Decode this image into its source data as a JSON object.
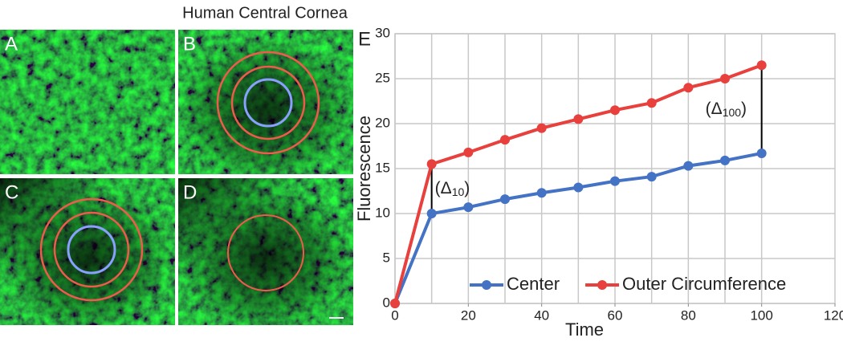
{
  "title": "Human Central Cornea",
  "panels": [
    "A",
    "B",
    "C",
    "D"
  ],
  "chart_data": {
    "type": "line",
    "panel_label": "E",
    "x_label": "Time",
    "y_label": "Fluorescence",
    "x": [
      0,
      10,
      20,
      30,
      40,
      50,
      60,
      70,
      80,
      90,
      100
    ],
    "series": [
      {
        "name": "Center",
        "color": "#4472c4",
        "values": [
          0,
          10,
          10.7,
          11.6,
          12.3,
          12.9,
          13.6,
          14.1,
          15.3,
          15.9,
          16.7
        ]
      },
      {
        "name": "Outer Circumference",
        "color": "#e8403c",
        "values": [
          0,
          15.5,
          16.8,
          18.2,
          19.5,
          20.5,
          21.5,
          22.3,
          24,
          25,
          26.5
        ]
      }
    ],
    "xlim": [
      0,
      120
    ],
    "xticks": [
      0,
      20,
      40,
      60,
      80,
      100,
      120
    ],
    "ylim": [
      0,
      30
    ],
    "yticks": [
      0,
      5,
      10,
      15,
      20,
      25,
      30
    ],
    "grid": true,
    "legend": "bottom",
    "annotations": [
      {
        "open": "(Δ",
        "sub": "10",
        "close": ")"
      },
      {
        "open": "(Δ",
        "sub": "100",
        "close": ")"
      }
    ]
  }
}
